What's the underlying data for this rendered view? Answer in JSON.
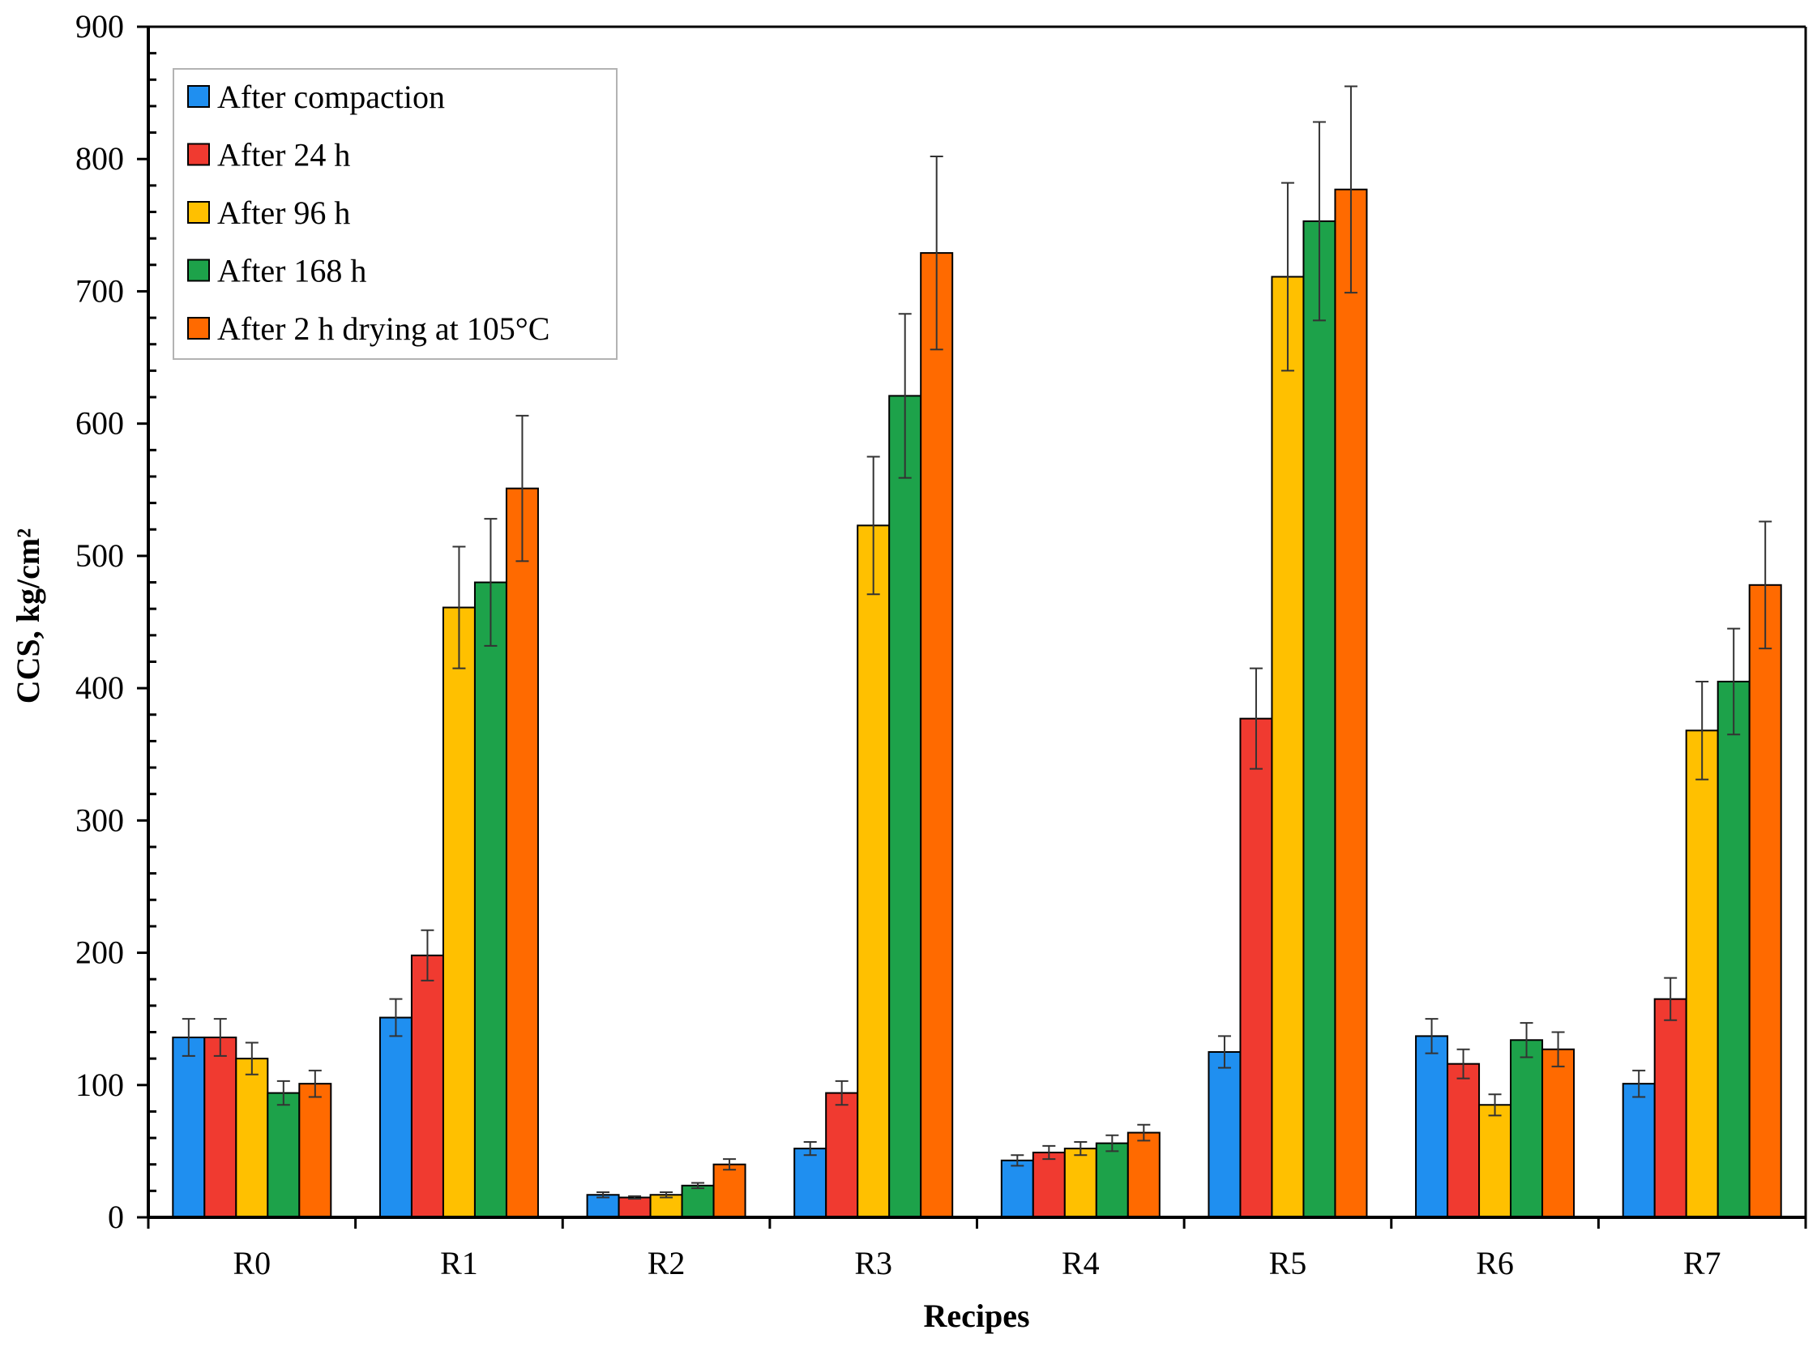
{
  "chart_data": {
    "type": "bar",
    "title": "",
    "xlabel": "Recipes",
    "ylabel": "CCS, kg/cm²",
    "ylim": [
      0,
      900
    ],
    "yticks": [
      0,
      100,
      200,
      300,
      400,
      500,
      600,
      700,
      800,
      900
    ],
    "grid": false,
    "legend_position": "top-left",
    "categories": [
      "R0",
      "R1",
      "R2",
      "R3",
      "R4",
      "R5",
      "R6",
      "R7"
    ],
    "series": [
      {
        "name": "After compaction",
        "color": "#1f8ff0",
        "values": [
          136,
          151,
          17,
          52,
          43,
          125,
          137,
          101
        ],
        "errors": [
          14,
          14,
          2,
          5,
          4,
          12,
          13,
          10
        ]
      },
      {
        "name": "After 24 h",
        "color": "#f03a30",
        "values": [
          136,
          198,
          15,
          94,
          49,
          377,
          116,
          165
        ],
        "errors": [
          14,
          19,
          1,
          9,
          5,
          38,
          11,
          16
        ]
      },
      {
        "name": "After 96 h",
        "color": "#ffc000",
        "values": [
          120,
          461,
          17,
          523,
          52,
          711,
          85,
          368
        ],
        "errors": [
          12,
          46,
          2,
          52,
          5,
          71,
          8,
          37
        ]
      },
      {
        "name": "After 168 h",
        "color": "#1da24a",
        "values": [
          94,
          480,
          24,
          621,
          56,
          753,
          134,
          405
        ],
        "errors": [
          9,
          48,
          2,
          62,
          6,
          75,
          13,
          40
        ]
      },
      {
        "name": "After 2 h drying at 105°C",
        "color": "#ff6a00",
        "values": [
          101,
          551,
          40,
          729,
          64,
          777,
          127,
          478
        ],
        "errors": [
          10,
          55,
          4,
          73,
          6,
          78,
          13,
          48
        ]
      }
    ]
  }
}
